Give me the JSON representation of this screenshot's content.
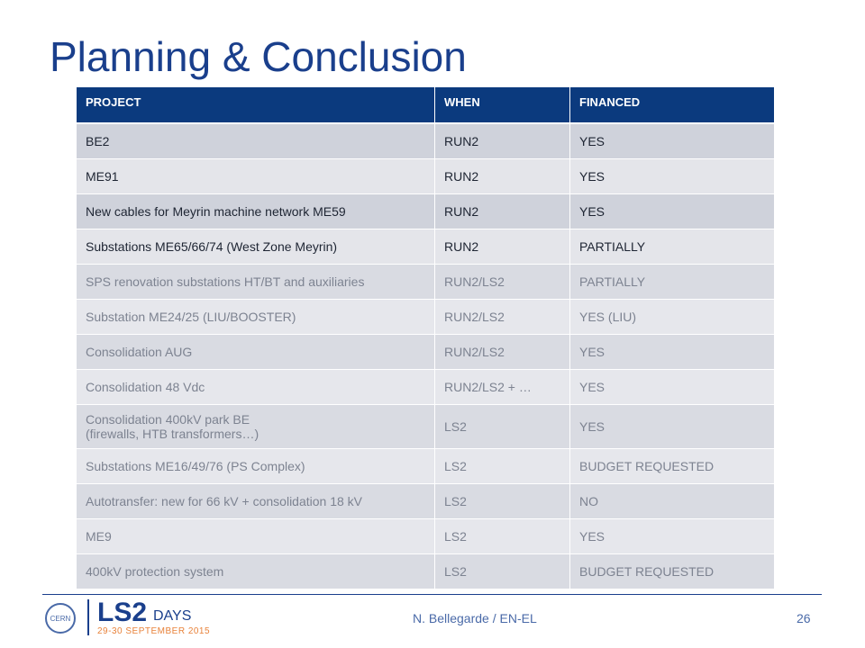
{
  "header": {
    "title": "Planning & Conclusion"
  },
  "table": {
    "columns": [
      "PROJECT",
      "WHEN",
      "FINANCED"
    ],
    "rows": [
      [
        "BE2",
        "RUN2",
        "YES"
      ],
      [
        "ME91",
        "RUN2",
        "YES"
      ],
      [
        "New cables for Meyrin machine network ME59",
        "RUN2",
        "YES"
      ],
      [
        "Substations ME65/66/74 (West Zone Meyrin)",
        "RUN2",
        "PARTIALLY"
      ],
      [
        "SPS renovation substations HT/BT and auxiliaries",
        "RUN2/LS2",
        "PARTIALLY"
      ],
      [
        "Substation ME24/25 (LIU/BOOSTER)",
        "RUN2/LS2",
        "YES (LIU)"
      ],
      [
        "Consolidation AUG",
        "RUN2/LS2",
        "YES"
      ],
      [
        "Consolidation 48 Vdc",
        "RUN2/LS2 + …",
        "YES"
      ],
      [
        [
          "Consolidation 400kV park BE",
          "(firewalls, HTB transformers…)"
        ],
        "LS2",
        "YES"
      ],
      [
        "Substations ME16/49/76 (PS Complex)",
        "LS2",
        "BUDGET REQUESTED"
      ],
      [
        "Autotransfer: new for 66 kV + consolidation 18 kV",
        "LS2",
        "NO"
      ],
      [
        "ME9",
        "LS2",
        "YES"
      ],
      [
        "400kV protection system",
        "LS2",
        "BUDGET REQUESTED"
      ]
    ]
  },
  "footer": {
    "author": "N. Bellegarde / EN-EL",
    "page": "26",
    "logo": {
      "org": "CERN",
      "event": "LS2",
      "suffix": "DAYS",
      "date": "29-30 SEPTEMBER 2015"
    }
  }
}
